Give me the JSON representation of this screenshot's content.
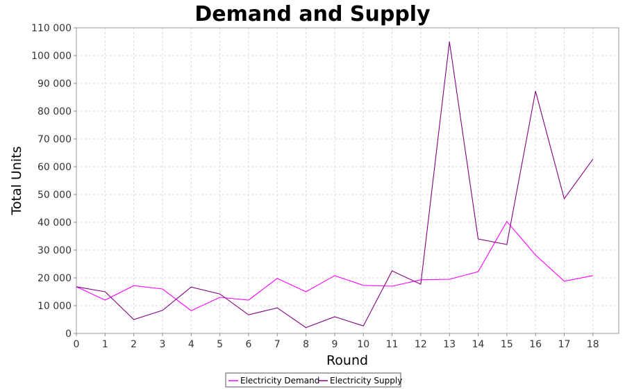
{
  "chart_data": {
    "type": "line",
    "title": "Demand and Supply",
    "xlabel": "Round",
    "ylabel": "Total Units",
    "xlim": [
      0,
      18.9
    ],
    "ylim": [
      0,
      110000
    ],
    "x": [
      0,
      1,
      2,
      3,
      4,
      5,
      6,
      7,
      8,
      9,
      10,
      11,
      12,
      13,
      14,
      15,
      16,
      17,
      18
    ],
    "x_ticks": [
      "0",
      "1",
      "2",
      "3",
      "4",
      "5",
      "6",
      "7",
      "8",
      "9",
      "10",
      "11",
      "12",
      "13",
      "14",
      "15",
      "16",
      "17",
      "18"
    ],
    "y_ticks": [
      {
        "value": 0,
        "label": "0"
      },
      {
        "value": 10000,
        "label": "10 000"
      },
      {
        "value": 20000,
        "label": "20 000"
      },
      {
        "value": 30000,
        "label": "30 000"
      },
      {
        "value": 40000,
        "label": "40 000"
      },
      {
        "value": 50000,
        "label": "50 000"
      },
      {
        "value": 60000,
        "label": "60 000"
      },
      {
        "value": 70000,
        "label": "70 000"
      },
      {
        "value": 80000,
        "label": "80 000"
      },
      {
        "value": 90000,
        "label": "90 000"
      },
      {
        "value": 100000,
        "label": "100 000"
      },
      {
        "value": 110000,
        "label": "110 000"
      }
    ],
    "grid": true,
    "legend_position": "bottom-center",
    "series": [
      {
        "name": "Electricity Demand",
        "color": "#ff00ff",
        "values": [
          16800,
          12000,
          17200,
          16000,
          8200,
          13000,
          12000,
          19800,
          15000,
          20800,
          17300,
          17000,
          19300,
          19500,
          22200,
          40300,
          28200,
          18800,
          20800
        ]
      },
      {
        "name": "Electricity Supply",
        "color": "#800080",
        "values": [
          16800,
          15000,
          5000,
          8300,
          16700,
          14200,
          6700,
          9200,
          2100,
          6000,
          2700,
          22500,
          17700,
          105000,
          34000,
          32000,
          87200,
          48500,
          62700
        ]
      }
    ]
  }
}
